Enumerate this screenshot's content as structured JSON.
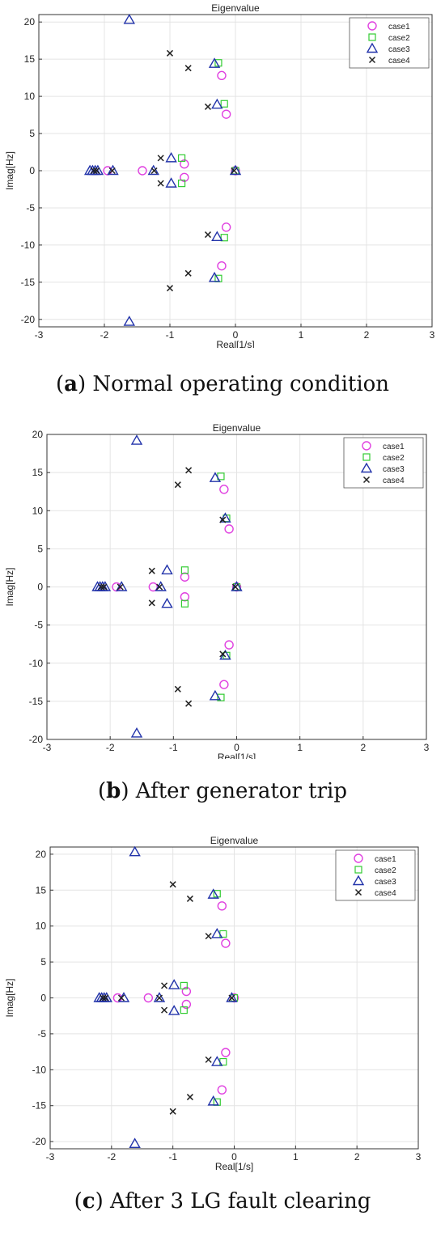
{
  "chart_data": [
    {
      "type": "scatter",
      "title": "Eigenvalue",
      "xlabel": "Real[1/s]",
      "ylabel": "Imag[Hz]",
      "xlim": [
        -3,
        3
      ],
      "ylim": [
        -21,
        21
      ],
      "xticks": [
        -3,
        -2,
        -1,
        0,
        1,
        2,
        3
      ],
      "yticks": [
        20,
        15,
        10,
        5,
        0,
        -5,
        -10,
        -15,
        -20
      ],
      "grid": true,
      "legend_position": "top-right",
      "caption_letter": "a",
      "caption_text": "Normal operating condition",
      "series": [
        {
          "name": "case1",
          "marker": "circle",
          "color": "#e040e0",
          "x": [
            -1.95,
            -1.42,
            -0.78,
            -0.78,
            -0.21,
            -0.21,
            -0.14,
            -0.14,
            0.0
          ],
          "y": [
            0,
            0,
            0.9,
            -0.9,
            12.8,
            -12.8,
            7.6,
            -7.6,
            0
          ]
        },
        {
          "name": "case2",
          "marker": "square",
          "color": "#33cc33",
          "x": [
            -0.82,
            -0.82,
            -0.26,
            -0.26,
            -0.17,
            -0.17,
            0.0
          ],
          "y": [
            1.7,
            -1.7,
            14.5,
            -14.5,
            9.0,
            -9.0,
            0
          ]
        },
        {
          "name": "case3",
          "marker": "triangle",
          "color": "#2233aa",
          "x": [
            -1.62,
            -1.62,
            -2.22,
            -2.18,
            -2.14,
            -2.1,
            -1.87,
            -1.25,
            -0.98,
            -0.98,
            -0.32,
            -0.32,
            -0.28,
            -0.28,
            0.0
          ],
          "y": [
            20.3,
            -20.3,
            0,
            0,
            0,
            0,
            0,
            0,
            1.7,
            -1.7,
            14.4,
            -14.4,
            8.9,
            -8.9,
            0
          ]
        },
        {
          "name": "case4",
          "marker": "x",
          "color": "#222222",
          "x": [
            -1.0,
            -1.0,
            -0.72,
            -0.72,
            -0.42,
            -0.42,
            -1.14,
            -1.14,
            -2.16,
            -2.12,
            -1.88,
            -1.24,
            -0.02
          ],
          "y": [
            15.8,
            -15.8,
            13.8,
            -13.8,
            8.6,
            -8.6,
            1.7,
            -1.7,
            0,
            0,
            0,
            0,
            0
          ]
        }
      ]
    },
    {
      "type": "scatter",
      "title": "Eigenvalue",
      "xlabel": "Real[1/s]",
      "ylabel": "Imag[Hz]",
      "xlim": [
        -3,
        3
      ],
      "ylim": [
        -20,
        20
      ],
      "xticks": [
        -3,
        -2,
        -1,
        0,
        1,
        2,
        3
      ],
      "yticks": [
        20,
        15,
        10,
        5,
        0,
        -5,
        -10,
        -15,
        -20
      ],
      "grid": true,
      "legend_position": "top-right",
      "caption_letter": "b",
      "caption_text": "After generator trip",
      "series": [
        {
          "name": "case1",
          "marker": "circle",
          "color": "#e040e0",
          "x": [
            -1.9,
            -1.32,
            -0.82,
            -0.82,
            -0.2,
            -0.2,
            -0.12,
            -0.12,
            0.0
          ],
          "y": [
            0,
            0,
            1.3,
            -1.3,
            12.8,
            -12.8,
            7.6,
            -7.6,
            0
          ]
        },
        {
          "name": "case2",
          "marker": "square",
          "color": "#33cc33",
          "x": [
            -0.82,
            -0.82,
            -0.25,
            -0.25,
            -0.16,
            -0.16,
            0.0
          ],
          "y": [
            2.2,
            -2.2,
            14.5,
            -14.5,
            9.0,
            -9.0,
            0
          ]
        },
        {
          "name": "case3",
          "marker": "triangle",
          "color": "#2233aa",
          "x": [
            -1.58,
            -1.58,
            -2.2,
            -2.16,
            -2.12,
            -2.08,
            -1.82,
            -1.2,
            -1.1,
            -1.1,
            -0.34,
            -0.34,
            -0.18,
            -0.18,
            0.0
          ],
          "y": [
            19.2,
            -19.2,
            0,
            0,
            0,
            0,
            0,
            0,
            2.2,
            -2.2,
            14.3,
            -14.3,
            9.0,
            -9.0,
            0
          ]
        },
        {
          "name": "case4",
          "marker": "x",
          "color": "#222222",
          "x": [
            -0.76,
            -0.76,
            -0.93,
            -0.93,
            -0.22,
            -0.22,
            -1.34,
            -1.34,
            -2.14,
            -2.1,
            -1.84,
            -1.22,
            -0.02
          ],
          "y": [
            15.3,
            -15.3,
            13.4,
            -13.4,
            8.8,
            -8.8,
            2.1,
            -2.1,
            0,
            0,
            0,
            0,
            0
          ]
        }
      ]
    },
    {
      "type": "scatter",
      "title": "Eigenvalue",
      "xlabel": "Real[1/s]",
      "ylabel": "Imag[Hz]",
      "xlim": [
        -3,
        3
      ],
      "ylim": [
        -21,
        21
      ],
      "xticks": [
        -3,
        -2,
        -1,
        0,
        1,
        2,
        3
      ],
      "yticks": [
        20,
        15,
        10,
        5,
        0,
        -5,
        -10,
        -15,
        -20
      ],
      "grid": true,
      "legend_position": "top-right",
      "caption_letter": "c",
      "caption_text": "After 3 LG fault clearing",
      "series": [
        {
          "name": "case1",
          "marker": "circle",
          "color": "#e040e0",
          "x": [
            -1.9,
            -1.4,
            -0.78,
            -0.78,
            -0.2,
            -0.2,
            -0.14,
            -0.14,
            0.0
          ],
          "y": [
            0,
            0,
            0.9,
            -0.9,
            12.8,
            -12.8,
            7.6,
            -7.6,
            0
          ]
        },
        {
          "name": "case2",
          "marker": "square",
          "color": "#33cc33",
          "x": [
            -0.82,
            -0.82,
            -0.28,
            -0.28,
            -0.18,
            -0.18,
            0.0
          ],
          "y": [
            1.7,
            -1.7,
            14.5,
            -14.5,
            8.9,
            -8.9,
            0
          ]
        },
        {
          "name": "case3",
          "marker": "triangle",
          "color": "#2233aa",
          "x": [
            -1.62,
            -1.62,
            -2.2,
            -2.16,
            -2.12,
            -2.08,
            -1.8,
            -1.22,
            -0.98,
            -0.98,
            -0.34,
            -0.34,
            -0.28,
            -0.28,
            -0.04
          ],
          "y": [
            20.3,
            -20.3,
            0,
            0,
            0,
            0,
            0,
            0,
            1.8,
            -1.8,
            14.4,
            -14.4,
            8.9,
            -8.9,
            0
          ]
        },
        {
          "name": "case4",
          "marker": "x",
          "color": "#222222",
          "x": [
            -1.0,
            -1.0,
            -0.72,
            -0.72,
            -0.42,
            -0.42,
            -1.14,
            -1.14,
            -2.14,
            -2.1,
            -1.84,
            -1.22,
            -0.04
          ],
          "y": [
            15.8,
            -15.8,
            13.8,
            -13.8,
            8.6,
            -8.6,
            1.7,
            -1.7,
            0,
            0,
            0,
            0,
            0
          ]
        }
      ]
    }
  ]
}
